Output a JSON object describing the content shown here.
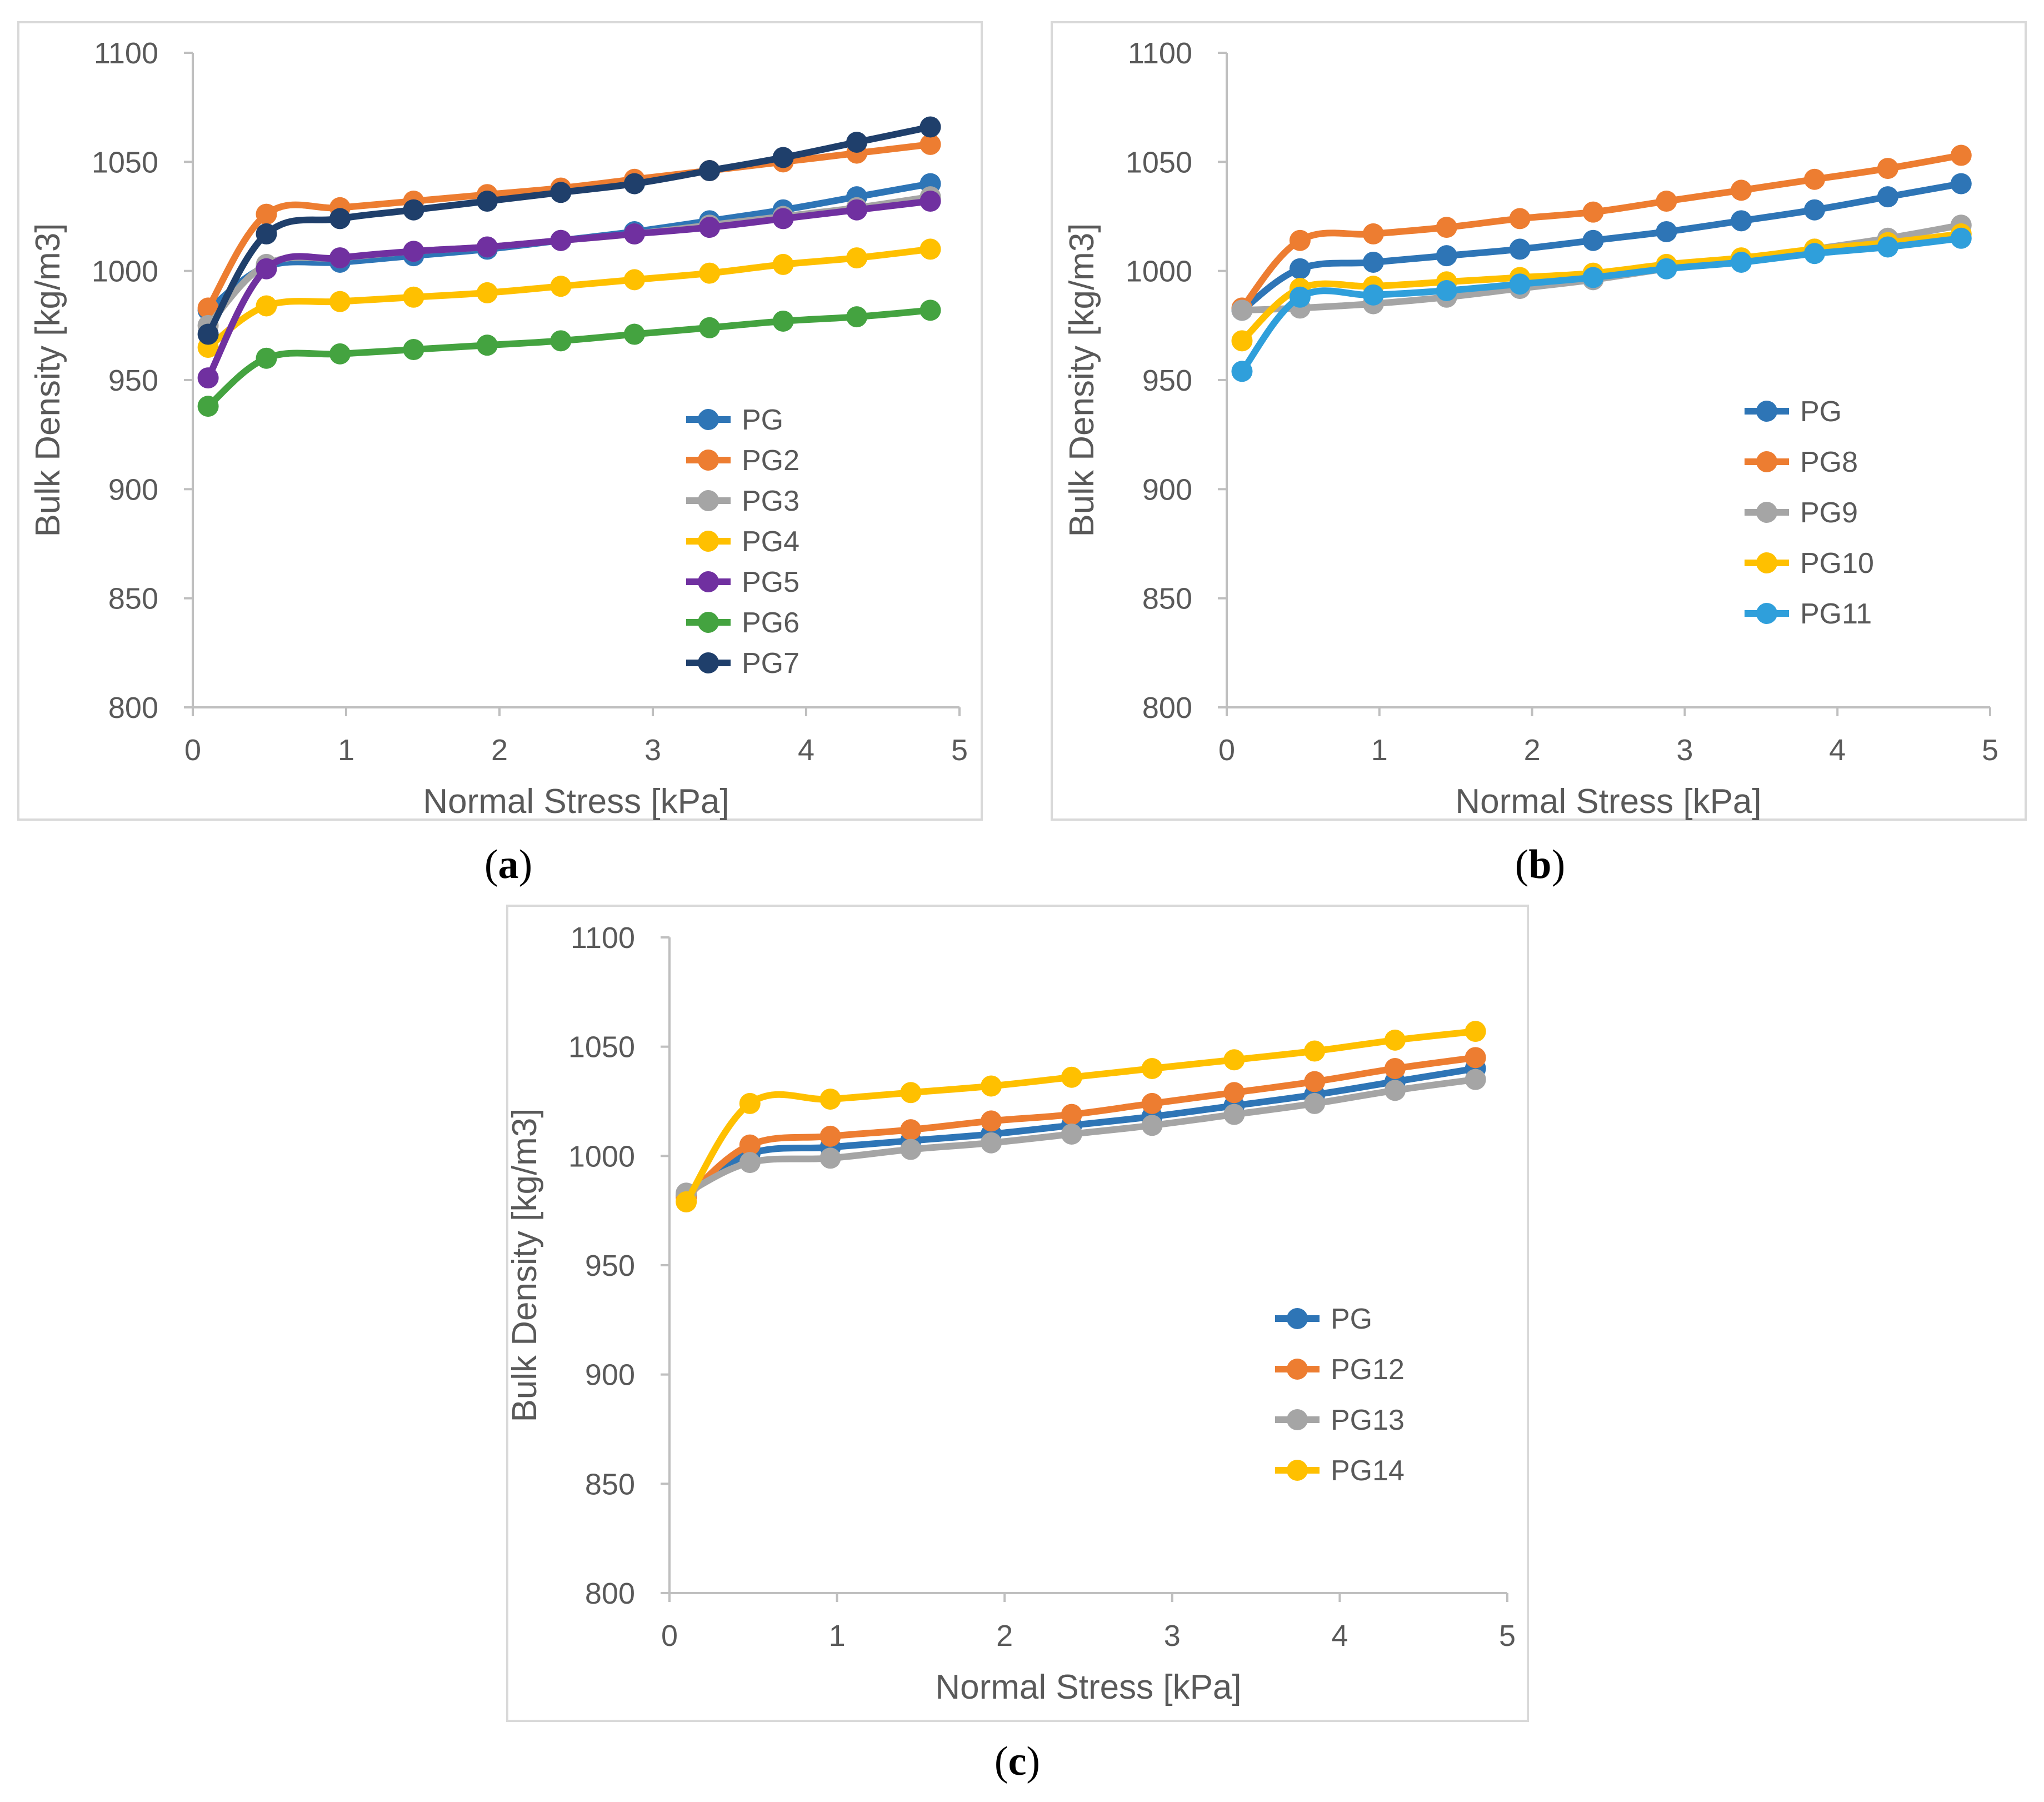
{
  "chart_data": [
    {
      "type": "line",
      "caption": {
        "open": "(",
        "letter": "a",
        "close": ")"
      },
      "xlabel": "Normal Stress [kPa]",
      "ylabel": "Bulk Density [kg/m3]",
      "xlim": [
        0,
        5
      ],
      "ylim": [
        800,
        1100
      ],
      "xticks": [
        0,
        1,
        2,
        3,
        4,
        5
      ],
      "yticks": [
        800,
        850,
        900,
        950,
        1000,
        1050,
        1100
      ],
      "legend_position": "bottom-right",
      "x": [
        0.1,
        0.48,
        0.96,
        1.44,
        1.92,
        2.4,
        2.88,
        3.37,
        3.85,
        4.33,
        4.81
      ],
      "series": [
        {
          "name": "PG",
          "color": "#2e75b6",
          "values": [
            982,
            1002,
            1004,
            1007,
            1010,
            1014,
            1018,
            1023,
            1028,
            1034,
            1040
          ]
        },
        {
          "name": "PG2",
          "color": "#ed7d31",
          "values": [
            983,
            1026,
            1029,
            1032,
            1035,
            1038,
            1042,
            1046,
            1050,
            1054,
            1058
          ]
        },
        {
          "name": "PG3",
          "color": "#a5a5a5",
          "values": [
            975,
            1003,
            1006,
            1009,
            1011,
            1014,
            1017,
            1021,
            1025,
            1029,
            1034
          ]
        },
        {
          "name": "PG4",
          "color": "#ffc000",
          "values": [
            965,
            984,
            986,
            988,
            990,
            993,
            996,
            999,
            1003,
            1006,
            1010
          ]
        },
        {
          "name": "PG5",
          "color": "#7030a0",
          "values": [
            951,
            1001,
            1006,
            1009,
            1011,
            1014,
            1017,
            1020,
            1024,
            1028,
            1032
          ]
        },
        {
          "name": "PG6",
          "color": "#44a340",
          "values": [
            938,
            960,
            962,
            964,
            966,
            968,
            971,
            974,
            977,
            979,
            982
          ]
        },
        {
          "name": "PG7",
          "color": "#1f3f6b",
          "values": [
            971,
            1017,
            1024,
            1028,
            1032,
            1036,
            1040,
            1046,
            1052,
            1059,
            1066
          ]
        }
      ]
    },
    {
      "type": "line",
      "caption": {
        "open": "(",
        "letter": "b",
        "close": ")"
      },
      "xlabel": "Normal Stress [kPa]",
      "ylabel": "Bulk Density [kg/m3]",
      "xlim": [
        0,
        5
      ],
      "ylim": [
        800,
        1100
      ],
      "xticks": [
        0,
        1,
        2,
        3,
        4,
        5
      ],
      "yticks": [
        800,
        850,
        900,
        950,
        1000,
        1050,
        1100
      ],
      "legend_position": "bottom-right",
      "x": [
        0.1,
        0.48,
        0.96,
        1.44,
        1.92,
        2.4,
        2.88,
        3.37,
        3.85,
        4.33,
        4.81
      ],
      "series": [
        {
          "name": "PG",
          "color": "#2e75b6",
          "values": [
            982,
            1001,
            1004,
            1007,
            1010,
            1014,
            1018,
            1023,
            1028,
            1034,
            1040
          ]
        },
        {
          "name": "PG8",
          "color": "#ed7d31",
          "values": [
            983,
            1014,
            1017,
            1020,
            1024,
            1027,
            1032,
            1037,
            1042,
            1047,
            1053
          ]
        },
        {
          "name": "PG9",
          "color": "#a5a5a5",
          "values": [
            982,
            983,
            985,
            988,
            992,
            996,
            1001,
            1005,
            1010,
            1015,
            1021
          ]
        },
        {
          "name": "PG10",
          "color": "#ffc000",
          "values": [
            968,
            992,
            993,
            995,
            997,
            999,
            1003,
            1006,
            1010,
            1013,
            1017
          ]
        },
        {
          "name": "PG11",
          "color": "#2f9fdb",
          "values": [
            954,
            988,
            989,
            991,
            994,
            997,
            1001,
            1004,
            1008,
            1011,
            1015
          ]
        }
      ]
    },
    {
      "type": "line",
      "caption": {
        "open": "(",
        "letter": "c",
        "close": ")"
      },
      "xlabel": "Normal Stress [kPa]",
      "ylabel": "Bulk Density [kg/m3]",
      "xlim": [
        0,
        5
      ],
      "ylim": [
        800,
        1100
      ],
      "xticks": [
        0,
        1,
        2,
        3,
        4,
        5
      ],
      "yticks": [
        800,
        850,
        900,
        950,
        1000,
        1050,
        1100
      ],
      "legend_position": "bottom-right",
      "x": [
        0.1,
        0.48,
        0.96,
        1.44,
        1.92,
        2.4,
        2.88,
        3.37,
        3.85,
        4.33,
        4.81
      ],
      "series": [
        {
          "name": "PG",
          "color": "#2e75b6",
          "values": [
            982,
            1001,
            1004,
            1007,
            1010,
            1014,
            1018,
            1023,
            1028,
            1034,
            1040
          ]
        },
        {
          "name": "PG12",
          "color": "#ed7d31",
          "values": [
            981,
            1005,
            1009,
            1012,
            1016,
            1019,
            1024,
            1029,
            1034,
            1040,
            1045
          ]
        },
        {
          "name": "PG13",
          "color": "#a5a5a5",
          "values": [
            983,
            997,
            999,
            1003,
            1006,
            1010,
            1014,
            1019,
            1024,
            1030,
            1035
          ]
        },
        {
          "name": "PG14",
          "color": "#ffc000",
          "values": [
            979,
            1024,
            1026,
            1029,
            1032,
            1036,
            1040,
            1044,
            1048,
            1053,
            1057
          ]
        }
      ]
    }
  ]
}
